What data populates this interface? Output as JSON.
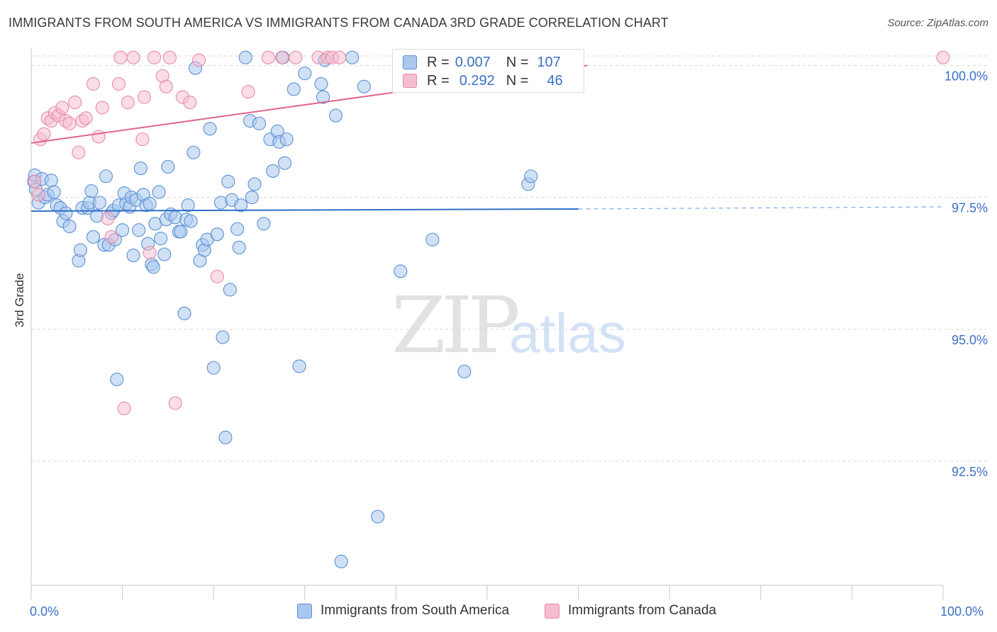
{
  "header": {
    "title": "IMMIGRANTS FROM SOUTH AMERICA VS IMMIGRANTS FROM CANADA 3RD GRADE CORRELATION CHART",
    "source": "Source: ZipAtlas.com"
  },
  "watermark": {
    "zip": "ZIP",
    "atlas": "atlas"
  },
  "legend": {
    "r_label": "R =",
    "n_label": "N =",
    "blue": {
      "r": "0.007",
      "n": "107"
    },
    "pink": {
      "r": "0.292",
      "n": "46"
    }
  },
  "bottom_legend": {
    "blue": "Immigrants from South America",
    "pink": "Immigrants from Canada"
  },
  "colors": {
    "blue_fill": "#a9c8ee",
    "blue_stroke": "#5b8fd4",
    "blue_line": "#2f6fc9",
    "pink_fill": "#f6bcd0",
    "pink_stroke": "#e88aa8",
    "pink_line": "#e06590",
    "axis_text": "#3b70c4",
    "grid": "#d8d8d8"
  },
  "chart_data": {
    "type": "scatter",
    "title": "IMMIGRANTS FROM SOUTH AMERICA VS IMMIGRANTS FROM CANADA 3RD GRADE CORRELATION CHART",
    "xlabel": "",
    "ylabel": "3rd Grade",
    "xlim": [
      0,
      100
    ],
    "ylim": [
      90.15,
      100.3
    ],
    "x_tick_labels": [
      "0.0%",
      "100.0%"
    ],
    "y_ticks": [
      92.5,
      95.0,
      97.5,
      100.0
    ],
    "y_tick_labels": [
      "92.5%",
      "95.0%",
      "97.5%",
      "100.0%"
    ],
    "grid": "horizontal dashed",
    "legend_placement": "top-center",
    "series": [
      {
        "name": "Immigrants from South America",
        "color": "#a9c8ee",
        "trend": {
          "x": [
            0,
            60
          ],
          "y": [
            97.24,
            97.28
          ],
          "dashed_to": 100,
          "dashed_y_end": 97.32
        },
        "points": [
          [
            0.3,
            97.8
          ],
          [
            0.4,
            97.92
          ],
          [
            0.5,
            97.65
          ],
          [
            0.8,
            97.4
          ],
          [
            1.2,
            97.85
          ],
          [
            1.5,
            97.5
          ],
          [
            1.8,
            97.55
          ],
          [
            2.2,
            97.82
          ],
          [
            2.5,
            97.6
          ],
          [
            2.8,
            97.35
          ],
          [
            3.2,
            97.3
          ],
          [
            3.5,
            97.05
          ],
          [
            3.8,
            97.2
          ],
          [
            4.2,
            96.95
          ],
          [
            5.2,
            96.3
          ],
          [
            5.4,
            96.5
          ],
          [
            5.6,
            97.3
          ],
          [
            6.2,
            97.3
          ],
          [
            6.4,
            97.4
          ],
          [
            6.6,
            97.62
          ],
          [
            6.8,
            96.75
          ],
          [
            7.2,
            97.15
          ],
          [
            7.5,
            97.4
          ],
          [
            8.0,
            96.6
          ],
          [
            8.2,
            97.9
          ],
          [
            8.5,
            96.6
          ],
          [
            8.8,
            97.2
          ],
          [
            9.0,
            97.25
          ],
          [
            9.2,
            96.7
          ],
          [
            9.4,
            94.05
          ],
          [
            9.6,
            97.35
          ],
          [
            10.0,
            96.88
          ],
          [
            10.2,
            97.58
          ],
          [
            10.4,
            97.38
          ],
          [
            10.8,
            97.32
          ],
          [
            11.0,
            97.5
          ],
          [
            11.2,
            96.4
          ],
          [
            11.5,
            97.45
          ],
          [
            11.8,
            96.88
          ],
          [
            12.0,
            98.05
          ],
          [
            12.3,
            97.55
          ],
          [
            12.6,
            97.35
          ],
          [
            12.8,
            96.62
          ],
          [
            13.0,
            97.38
          ],
          [
            13.2,
            96.23
          ],
          [
            13.4,
            96.18
          ],
          [
            13.6,
            97.0
          ],
          [
            14.0,
            97.6
          ],
          [
            14.2,
            96.72
          ],
          [
            14.6,
            96.42
          ],
          [
            14.8,
            97.08
          ],
          [
            15.0,
            98.08
          ],
          [
            15.3,
            97.18
          ],
          [
            15.8,
            97.12
          ],
          [
            16.2,
            96.85
          ],
          [
            16.4,
            96.85
          ],
          [
            16.8,
            95.3
          ],
          [
            17.0,
            97.08
          ],
          [
            17.2,
            97.35
          ],
          [
            17.5,
            97.05
          ],
          [
            17.8,
            98.35
          ],
          [
            18.0,
            99.95
          ],
          [
            18.5,
            96.3
          ],
          [
            18.8,
            96.6
          ],
          [
            19.0,
            96.5
          ],
          [
            19.3,
            96.7
          ],
          [
            19.6,
            98.8
          ],
          [
            20.0,
            94.27
          ],
          [
            20.4,
            96.8
          ],
          [
            20.8,
            97.4
          ],
          [
            21.0,
            94.85
          ],
          [
            21.3,
            92.95
          ],
          [
            21.6,
            97.8
          ],
          [
            21.8,
            95.75
          ],
          [
            22.0,
            97.45
          ],
          [
            22.6,
            96.9
          ],
          [
            22.8,
            96.55
          ],
          [
            23.0,
            97.35
          ],
          [
            23.5,
            100.15
          ],
          [
            24.0,
            98.95
          ],
          [
            24.2,
            97.5
          ],
          [
            24.5,
            97.75
          ],
          [
            25.0,
            98.9
          ],
          [
            25.5,
            97.0
          ],
          [
            26.2,
            98.6
          ],
          [
            26.5,
            98.0
          ],
          [
            27.0,
            98.75
          ],
          [
            27.2,
            98.55
          ],
          [
            27.6,
            100.15
          ],
          [
            27.8,
            98.15
          ],
          [
            28.0,
            98.6
          ],
          [
            28.8,
            99.55
          ],
          [
            29.4,
            94.3
          ],
          [
            30.0,
            99.85
          ],
          [
            31.8,
            99.65
          ],
          [
            32.0,
            99.4
          ],
          [
            32.2,
            100.1
          ],
          [
            33.4,
            99.05
          ],
          [
            34.0,
            90.6
          ],
          [
            35.2,
            100.15
          ],
          [
            36.5,
            99.6
          ],
          [
            38.0,
            91.45
          ],
          [
            40.5,
            96.1
          ],
          [
            44.0,
            96.7
          ],
          [
            47.5,
            94.2
          ],
          [
            54.5,
            97.75
          ],
          [
            54.8,
            97.9
          ]
        ]
      },
      {
        "name": "Immigrants from Canada",
        "color": "#f6bcd0",
        "trend": {
          "x": [
            0,
            61
          ],
          "y": [
            98.53,
            100.0
          ]
        },
        "points": [
          [
            0.4,
            97.8
          ],
          [
            0.8,
            97.55
          ],
          [
            1.0,
            98.6
          ],
          [
            1.4,
            98.7
          ],
          [
            1.8,
            99.0
          ],
          [
            2.2,
            98.95
          ],
          [
            2.6,
            99.1
          ],
          [
            3.0,
            99.05
          ],
          [
            3.4,
            99.2
          ],
          [
            3.8,
            98.95
          ],
          [
            4.2,
            98.9
          ],
          [
            4.8,
            99.3
          ],
          [
            5.2,
            98.35
          ],
          [
            5.6,
            98.95
          ],
          [
            6.0,
            99.0
          ],
          [
            6.8,
            99.65
          ],
          [
            7.4,
            98.65
          ],
          [
            7.8,
            99.2
          ],
          [
            8.4,
            97.1
          ],
          [
            8.8,
            96.75
          ],
          [
            9.6,
            99.65
          ],
          [
            9.8,
            100.15
          ],
          [
            10.2,
            93.5
          ],
          [
            10.6,
            99.3
          ],
          [
            11.2,
            100.15
          ],
          [
            12.2,
            98.6
          ],
          [
            12.4,
            99.4
          ],
          [
            13.0,
            96.45
          ],
          [
            13.5,
            100.15
          ],
          [
            14.4,
            99.8
          ],
          [
            14.8,
            99.6
          ],
          [
            15.2,
            100.15
          ],
          [
            15.8,
            93.6
          ],
          [
            16.6,
            99.4
          ],
          [
            17.4,
            99.3
          ],
          [
            18.4,
            100.1
          ],
          [
            20.4,
            96.0
          ],
          [
            23.8,
            99.5
          ],
          [
            26.0,
            100.15
          ],
          [
            27.5,
            100.15
          ],
          [
            29.0,
            100.15
          ],
          [
            31.5,
            100.15
          ],
          [
            32.5,
            100.15
          ],
          [
            33.0,
            100.15
          ],
          [
            33.8,
            100.15
          ],
          [
            100.0,
            100.15
          ]
        ]
      }
    ]
  }
}
